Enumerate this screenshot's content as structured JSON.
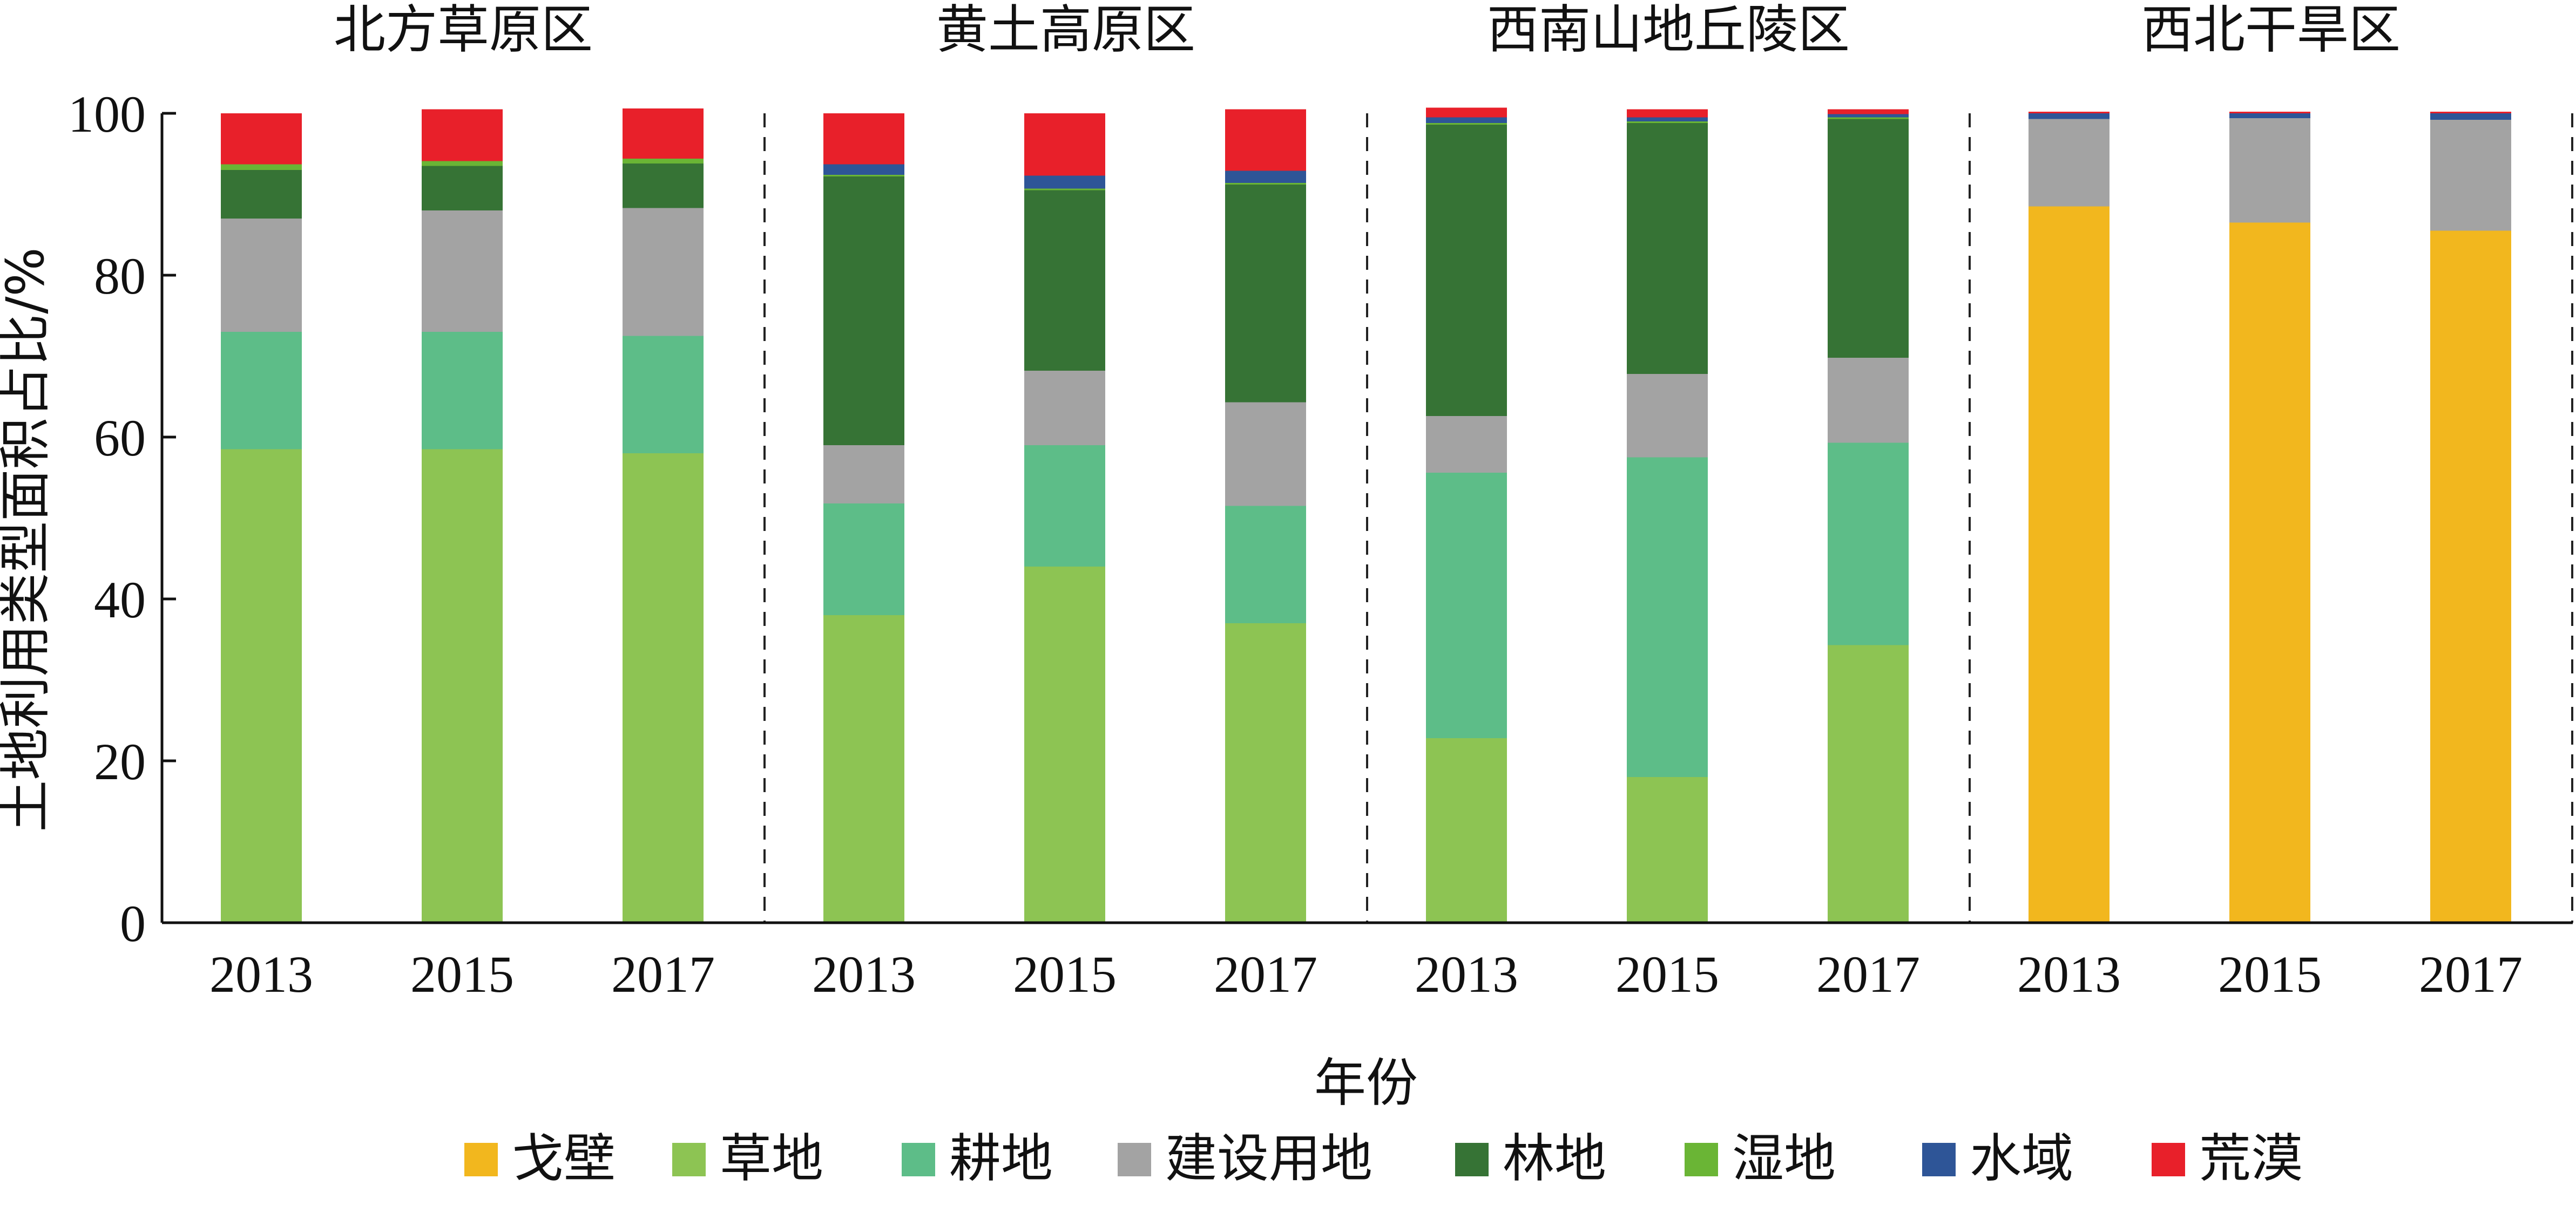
{
  "chart_data": {
    "type": "bar",
    "stacked": true,
    "regions": [
      "北方草原区",
      "黄土高原区",
      "西南山地丘陵区",
      "西北干旱区"
    ],
    "years": [
      "2013",
      "2015",
      "2017"
    ],
    "xlabel": "年份",
    "ylabel": "土地利用类型面积占比/%",
    "ylim": [
      0,
      100
    ],
    "yticks": [
      "0",
      "20",
      "40",
      "60",
      "80",
      "100"
    ],
    "grid": false,
    "legend_position": "bottom",
    "series": [
      {
        "name": "戈壁",
        "color": "#F2B71E",
        "values": [
          [
            0,
            0,
            0
          ],
          [
            0,
            0,
            0
          ],
          [
            0,
            0,
            0
          ],
          [
            88.5,
            86.5,
            85.5
          ]
        ]
      },
      {
        "name": "草地",
        "color": "#8DC453",
        "values": [
          [
            58.5,
            58.5,
            58.0
          ],
          [
            38.0,
            44.0,
            37.0
          ],
          [
            22.8,
            18.0,
            34.3
          ],
          [
            0,
            0,
            0
          ]
        ]
      },
      {
        "name": "耕地",
        "color": "#5DBD88",
        "values": [
          [
            14.5,
            14.5,
            14.5
          ],
          [
            13.8,
            15.0,
            14.5
          ],
          [
            32.8,
            39.5,
            25.0
          ],
          [
            0,
            0,
            0
          ]
        ]
      },
      {
        "name": "建设用地",
        "color": "#A3A3A3",
        "values": [
          [
            14.0,
            15.0,
            15.8
          ],
          [
            7.2,
            9.2,
            12.8
          ],
          [
            7.0,
            10.3,
            10.5
          ],
          [
            10.8,
            12.9,
            13.7
          ]
        ]
      },
      {
        "name": "林地",
        "color": "#367335",
        "values": [
          [
            6.0,
            5.5,
            5.5
          ],
          [
            33.2,
            22.3,
            26.9
          ],
          [
            36.0,
            31.0,
            29.5
          ],
          [
            0,
            0,
            0
          ]
        ]
      },
      {
        "name": "湿地",
        "color": "#6AB535",
        "values": [
          [
            0.7,
            0.6,
            0.6
          ],
          [
            0.2,
            0.2,
            0.2
          ],
          [
            0.2,
            0.2,
            0.2
          ],
          [
            0,
            0,
            0
          ]
        ]
      },
      {
        "name": "水域",
        "color": "#2E5597",
        "values": [
          [
            0,
            0,
            0
          ],
          [
            1.3,
            1.6,
            1.5
          ],
          [
            0.7,
            0.5,
            0.4
          ],
          [
            0.7,
            0.6,
            0.8
          ]
        ]
      },
      {
        "name": "荒漠",
        "color": "#E8202A",
        "values": [
          [
            6.3,
            6.4,
            6.2
          ],
          [
            6.3,
            7.7,
            7.6
          ],
          [
            1.2,
            1.0,
            0.6
          ],
          [
            0.2,
            0.2,
            0.2
          ]
        ]
      }
    ]
  }
}
